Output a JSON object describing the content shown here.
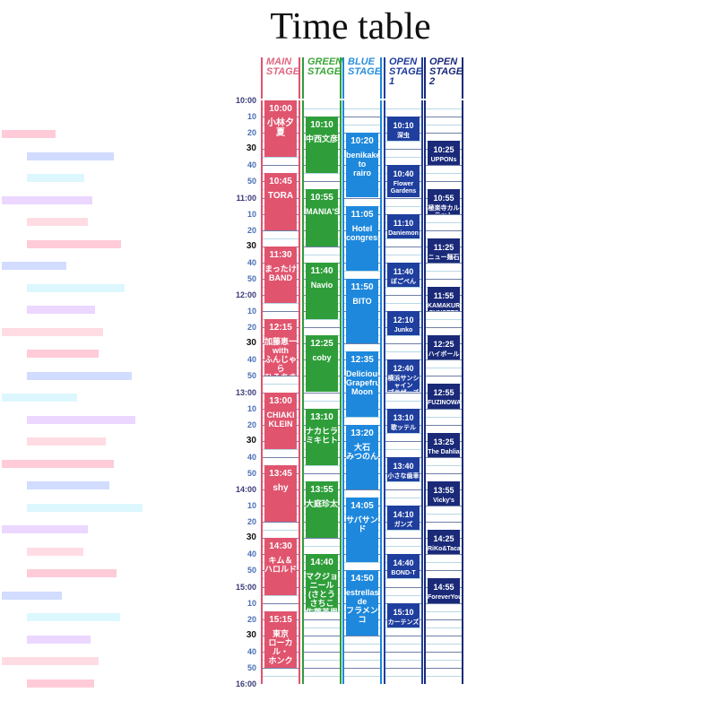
{
  "title": "Time table",
  "ticks": [
    {
      "label": "10:00",
      "kind": "hour"
    },
    {
      "label": "10",
      "kind": "min"
    },
    {
      "label": "20",
      "kind": "min"
    },
    {
      "label": "30",
      "kind": "half"
    },
    {
      "label": "40",
      "kind": "min"
    },
    {
      "label": "50",
      "kind": "min"
    },
    {
      "label": "11:00",
      "kind": "hour"
    },
    {
      "label": "10",
      "kind": "min"
    },
    {
      "label": "20",
      "kind": "min"
    },
    {
      "label": "30",
      "kind": "half"
    },
    {
      "label": "40",
      "kind": "min"
    },
    {
      "label": "50",
      "kind": "min"
    },
    {
      "label": "12:00",
      "kind": "hour"
    },
    {
      "label": "10",
      "kind": "min"
    },
    {
      "label": "20",
      "kind": "min"
    },
    {
      "label": "30",
      "kind": "half"
    },
    {
      "label": "40",
      "kind": "min"
    },
    {
      "label": "50",
      "kind": "min"
    },
    {
      "label": "13:00",
      "kind": "hour"
    },
    {
      "label": "10",
      "kind": "min"
    },
    {
      "label": "20",
      "kind": "min"
    },
    {
      "label": "30",
      "kind": "half"
    },
    {
      "label": "40",
      "kind": "min"
    },
    {
      "label": "50",
      "kind": "min"
    },
    {
      "label": "14:00",
      "kind": "hour"
    },
    {
      "label": "10",
      "kind": "min"
    },
    {
      "label": "20",
      "kind": "min"
    },
    {
      "label": "30",
      "kind": "half"
    },
    {
      "label": "40",
      "kind": "min"
    },
    {
      "label": "50",
      "kind": "min"
    },
    {
      "label": "15:00",
      "kind": "hour"
    },
    {
      "label": "10",
      "kind": "min"
    },
    {
      "label": "20",
      "kind": "min"
    },
    {
      "label": "30",
      "kind": "half"
    },
    {
      "label": "40",
      "kind": "min"
    },
    {
      "label": "50",
      "kind": "min"
    },
    {
      "label": "16:00",
      "kind": "hour"
    }
  ],
  "stages": [
    {
      "id": "main",
      "label": "MAIN\nSTAGE",
      "head_color": "#e0667f",
      "color": "#e0546e",
      "line_color": "#e0546e",
      "sets": [
        {
          "time": "10:00",
          "start": 0,
          "dur": 35,
          "name": "小林夕夏"
        },
        {
          "time": "10:45",
          "start": 45,
          "dur": 35,
          "name": "TORA"
        },
        {
          "time": "11:30",
          "start": 90,
          "dur": 35,
          "name": "まったけ\nBAND"
        },
        {
          "time": "12:15",
          "start": 135,
          "dur": 35,
          "name": "加藤恵一\nwith\nふんじゃら\nひろあき\n&川口伸王"
        },
        {
          "time": "13:00",
          "start": 180,
          "dur": 35,
          "name": "CHIAKI\nKLEIN"
        },
        {
          "time": "13:45",
          "start": 225,
          "dur": 35,
          "name": "shy"
        },
        {
          "time": "14:30",
          "start": 270,
          "dur": 35,
          "name": "キム＆\nハロルド"
        },
        {
          "time": "15:15",
          "start": 315,
          "dur": 35,
          "name": "東京\nローカル・\nホンク"
        }
      ]
    },
    {
      "id": "green",
      "label": "GREEN\nSTAGE",
      "head_color": "#3aa63a",
      "color": "#2f9e3a",
      "line_color": "#2f9e3a",
      "sets": [
        {
          "time": "10:10",
          "start": 10,
          "dur": 35,
          "name": "中西文彦"
        },
        {
          "time": "10:55",
          "start": 55,
          "dur": 35,
          "name": "MANIA'S"
        },
        {
          "time": "11:40",
          "start": 100,
          "dur": 35,
          "name": "Navio"
        },
        {
          "time": "12:25",
          "start": 145,
          "dur": 35,
          "name": "coby"
        },
        {
          "time": "13:10",
          "start": 190,
          "dur": 35,
          "name": "ナカヒラ\nミキヒト"
        },
        {
          "time": "13:55",
          "start": 235,
          "dur": 35,
          "name": "大庭珍太"
        },
        {
          "time": "14:40",
          "start": 280,
          "dur": 35,
          "name": "マクジョニール\n(さとうさちこ\n佐藤英男\nmac清水)"
        }
      ]
    },
    {
      "id": "blue",
      "label": "BLUE\nSTAGE",
      "head_color": "#2a8fe0",
      "color": "#1e88dd",
      "line_color": "#1e88dd",
      "sets": [
        {
          "time": "10:20",
          "start": 20,
          "dur": 40,
          "name": "benikake\nto\nrairo"
        },
        {
          "time": "11:05",
          "start": 65,
          "dur": 40,
          "name": "Hotel\ncongress"
        },
        {
          "time": "11:50",
          "start": 110,
          "dur": 40,
          "name": "BITO"
        },
        {
          "time": "12:35",
          "start": 155,
          "dur": 40,
          "name": "Delicious\nGrapefruits\nMoon"
        },
        {
          "time": "13:20",
          "start": 200,
          "dur": 40,
          "name": "大石\nみつのん"
        },
        {
          "time": "14:05",
          "start": 245,
          "dur": 40,
          "name": "サバサンド"
        },
        {
          "time": "14:50",
          "start": 290,
          "dur": 40,
          "name": "estrellas\nde\nフラメンコ"
        }
      ]
    },
    {
      "id": "open1",
      "label": "OPEN\nSTAGE\n1",
      "head_color": "#1e3a9e",
      "color": "#1f3f9f",
      "line_color": "#1f3f9f",
      "sets": [
        {
          "time": "10:10",
          "start": 10,
          "dur": 15,
          "name": "深虫"
        },
        {
          "time": "10:40",
          "start": 40,
          "dur": 20,
          "name": "Flower\nGardens"
        },
        {
          "time": "11:10",
          "start": 70,
          "dur": 15,
          "name": "Daniemon"
        },
        {
          "time": "11:40",
          "start": 100,
          "dur": 15,
          "name": "ぼごぺん"
        },
        {
          "time": "12:10",
          "start": 130,
          "dur": 15,
          "name": "Junko"
        },
        {
          "time": "12:40",
          "start": 160,
          "dur": 20,
          "name": "横浜サンシャイン\nブラザーズ"
        },
        {
          "time": "13:10",
          "start": 190,
          "dur": 15,
          "name": "歌ッテル"
        },
        {
          "time": "13:40",
          "start": 220,
          "dur": 15,
          "name": "小さな歯車"
        },
        {
          "time": "14:10",
          "start": 250,
          "dur": 15,
          "name": "ガンズ"
        },
        {
          "time": "14:40",
          "start": 280,
          "dur": 15,
          "name": "BOND-T"
        },
        {
          "time": "15:10",
          "start": 310,
          "dur": 15,
          "name": "カーテンズ"
        }
      ]
    },
    {
      "id": "open2",
      "label": "OPEN\nSTAGE\n2",
      "head_color": "#1a2a7a",
      "color": "#1a2a78",
      "line_color": "#1a2a78",
      "sets": [
        {
          "time": "10:25",
          "start": 25,
          "dur": 15,
          "name": "UPPONs"
        },
        {
          "time": "10:55",
          "start": 55,
          "dur": 15,
          "name": "極楽寺カルテット"
        },
        {
          "time": "11:25",
          "start": 85,
          "dur": 15,
          "name": "ニュー麺石"
        },
        {
          "time": "11:55",
          "start": 115,
          "dur": 15,
          "name": "KAMAKURA\nSUNSETS"
        },
        {
          "time": "12:25",
          "start": 145,
          "dur": 15,
          "name": "ハイボール♥\nラヴァーズ"
        },
        {
          "time": "12:55",
          "start": 175,
          "dur": 15,
          "name": "FUZINOWA"
        },
        {
          "time": "13:25",
          "start": 205,
          "dur": 15,
          "name": "The Dahlia"
        },
        {
          "time": "13:55",
          "start": 235,
          "dur": 15,
          "name": "Vicky's"
        },
        {
          "time": "14:25",
          "start": 265,
          "dur": 15,
          "name": "RiKo&Tacaco;"
        },
        {
          "time": "14:55",
          "start": 295,
          "dur": 15,
          "name": "ForeverYoung"
        }
      ]
    }
  ]
}
